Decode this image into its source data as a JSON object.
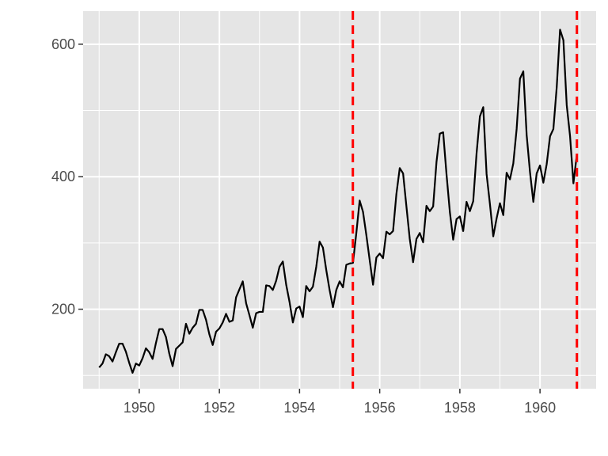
{
  "chart_data": {
    "type": "line",
    "title": "",
    "xlabel": "",
    "ylabel": "",
    "xlim": [
      1948.6,
      1961.4
    ],
    "ylim": [
      80,
      650
    ],
    "x_ticks": [
      1950,
      1952,
      1954,
      1956,
      1958,
      1960
    ],
    "x_tick_labels": [
      "1950",
      "1952",
      "1954",
      "1956",
      "1958",
      "1960"
    ],
    "y_ticks": [
      200,
      400,
      600
    ],
    "y_tick_labels": [
      "200",
      "400",
      "600"
    ],
    "grid": true,
    "legend": "none",
    "x_start": 1949.0,
    "x_step_months": 1,
    "series": [
      {
        "color": "#000000",
        "values": [
          112,
          118,
          132,
          129,
          121,
          135,
          148,
          148,
          136,
          119,
          104,
          118,
          115,
          126,
          141,
          135,
          125,
          149,
          170,
          170,
          158,
          133,
          114,
          140,
          145,
          150,
          178,
          163,
          172,
          178,
          199,
          199,
          184,
          162,
          146,
          166,
          171,
          180,
          193,
          181,
          183,
          218,
          230,
          242,
          209,
          191,
          172,
          194,
          196,
          196,
          236,
          235,
          229,
          243,
          264,
          272,
          237,
          211,
          180,
          201,
          204,
          188,
          235,
          227,
          234,
          264,
          302,
          293,
          259,
          229,
          203,
          229,
          242,
          233,
          267,
          269,
          270,
          315,
          364,
          347,
          312,
          274,
          237,
          278,
          284,
          277,
          317,
          313,
          318,
          374,
          413,
          405,
          355,
          306,
          271,
          306,
          315,
          301,
          356,
          348,
          355,
          422,
          465,
          467,
          404,
          347,
          305,
          336,
          340,
          318,
          362,
          348,
          363,
          435,
          491,
          505,
          404,
          359,
          310,
          337,
          360,
          342,
          406,
          396,
          420,
          472,
          548,
          559,
          463,
          407,
          362,
          405,
          417,
          391,
          419,
          461,
          472,
          535,
          622,
          606,
          508,
          461,
          390,
          432
        ]
      }
    ],
    "vlines": [
      {
        "x": 1955.33,
        "color": "#ff0000",
        "style": "dashed"
      },
      {
        "x": 1960.92,
        "color": "#ff0000",
        "style": "dashed"
      }
    ],
    "panel_background": "#e5e5e5",
    "gridline_color": "#ffffff"
  }
}
